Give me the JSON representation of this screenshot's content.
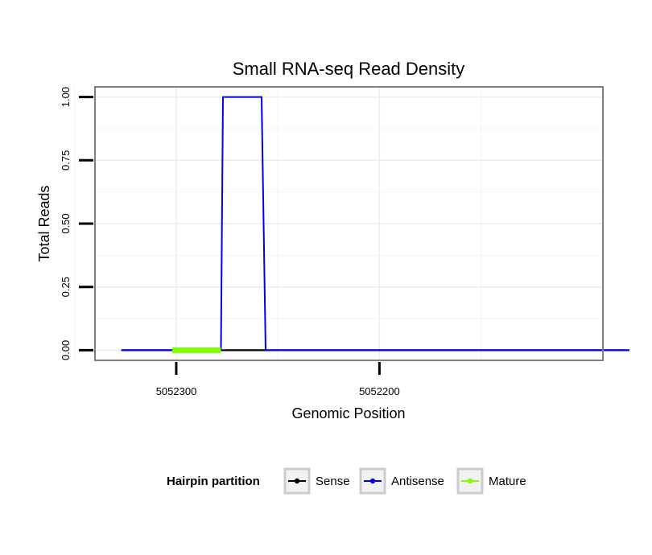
{
  "chart_data": {
    "type": "line",
    "title": "Small RNA-seq Read Density",
    "xlabel": "Genomic Position",
    "ylabel": "Total Reads",
    "x_reversed": true,
    "xlim": [
      5052340,
      5052090
    ],
    "ylim": [
      -0.04,
      1.04
    ],
    "x_ticks": [
      5052300,
      5052200
    ],
    "x_tick_labels": [
      "5052300",
      "5052200"
    ],
    "y_ticks": [
      0,
      0.25,
      0.5,
      0.75,
      1
    ],
    "y_tick_labels": [
      "0.00",
      "0.25",
      "0.50",
      "0.75",
      "1.00"
    ],
    "grid": true,
    "legend": {
      "title": "Hairpin partition",
      "position": "bottom",
      "entries": [
        "Sense",
        "Antisense",
        "Mature"
      ]
    },
    "series": [
      {
        "name": "Sense",
        "color": "#000000",
        "points": [
          [
            5052327,
            0
          ],
          [
            5052077,
            0
          ]
        ]
      },
      {
        "name": "Antisense",
        "color": "#0000ee",
        "points": [
          [
            5052327,
            0
          ],
          [
            5052278,
            0
          ],
          [
            5052277,
            1
          ],
          [
            5052258,
            1
          ],
          [
            5052256,
            0
          ],
          [
            5052077,
            0
          ]
        ]
      },
      {
        "name": "Mature",
        "color": "#7fff00",
        "points": [
          [
            5052302,
            0
          ],
          [
            5052278,
            0
          ]
        ]
      }
    ]
  }
}
